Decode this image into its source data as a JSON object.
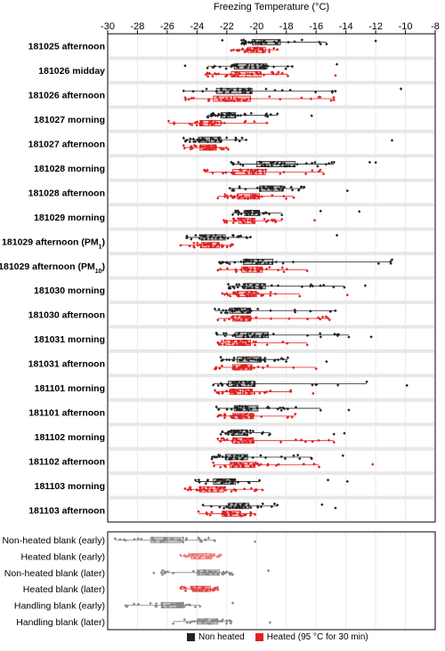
{
  "chart_data": {
    "type": "scatter",
    "subtype": "jittered dot plot with horizontal boxplots",
    "xlabel": "Freezing Temperature (°C)",
    "xlim": [
      -30,
      -8
    ],
    "xticks": [
      -30,
      -28,
      -26,
      -24,
      -22,
      -20,
      -18,
      -16,
      -14,
      -12,
      -10,
      -8
    ],
    "grid": true,
    "legend_position": "bottom",
    "series": [
      {
        "name": "Non heated",
        "color": "#222222"
      },
      {
        "name": "Heated (95 °C for 30 min)",
        "color": "#e02020"
      }
    ],
    "samples": [
      {
        "label": "181025 afternoon",
        "sub": "",
        "nh": {
          "q1": -20.3,
          "med": -19.7,
          "q3": -18.4,
          "min": -21.0,
          "max": -15.3,
          "out": [
            -22.3,
            -12.0
          ]
        },
        "h": {
          "q1": -20.6,
          "med": -20.0,
          "q3": -19.4,
          "min": -21.7,
          "max": -18.6,
          "out": []
        }
      },
      {
        "label": "181026 midday",
        "sub": "",
        "nh": {
          "q1": -21.5,
          "med": -20.4,
          "q3": -19.3,
          "min": -23.3,
          "max": -17.6,
          "out": [
            -24.8,
            -14.6
          ]
        },
        "h": {
          "q1": -21.7,
          "med": -20.7,
          "q3": -19.7,
          "min": -23.4,
          "max": -17.9,
          "out": [
            -14.7
          ]
        }
      },
      {
        "label": "181026 afternoon",
        "sub": "",
        "nh": {
          "q1": -22.7,
          "med": -21.8,
          "q3": -20.3,
          "min": -24.9,
          "max": -14.7,
          "out": [
            -10.3
          ]
        },
        "h": {
          "q1": -22.9,
          "med": -21.6,
          "q3": -20.4,
          "min": -24.8,
          "max": -14.8,
          "out": []
        }
      },
      {
        "label": "181027 morning",
        "sub": "",
        "nh": {
          "q1": -22.4,
          "med": -21.8,
          "q3": -21.4,
          "min": -23.3,
          "max": -18.6,
          "out": [
            -16.3
          ]
        },
        "h": {
          "q1": -23.8,
          "med": -23.2,
          "q3": -22.4,
          "min": -25.9,
          "max": -19.3,
          "out": []
        }
      },
      {
        "label": "181027 afternoon",
        "sub": "",
        "nh": {
          "q1": -23.9,
          "med": -23.1,
          "q3": -22.4,
          "min": -24.9,
          "max": -20.7,
          "out": [
            -10.9
          ]
        },
        "h": {
          "q1": -23.8,
          "med": -23.3,
          "q3": -22.7,
          "min": -24.9,
          "max": -21.9,
          "out": []
        }
      },
      {
        "label": "181028 morning",
        "sub": "",
        "nh": {
          "q1": -20.0,
          "med": -19.0,
          "q3": -17.4,
          "min": -21.7,
          "max": -14.8,
          "out": [
            -12.4,
            -12.0
          ]
        },
        "h": {
          "q1": -21.6,
          "med": -20.4,
          "q3": -19.4,
          "min": -23.5,
          "max": -15.5,
          "out": []
        }
      },
      {
        "label": "181028 afternoon",
        "sub": "",
        "nh": {
          "q1": -19.8,
          "med": -18.9,
          "q3": -18.2,
          "min": -21.8,
          "max": -16.8,
          "out": [
            -13.9
          ]
        },
        "h": {
          "q1": -21.3,
          "med": -20.4,
          "q3": -19.8,
          "min": -22.6,
          "max": -17.5,
          "out": []
        }
      },
      {
        "label": "181029 morning",
        "sub": "",
        "nh": {
          "q1": -20.8,
          "med": -20.4,
          "q3": -19.8,
          "min": -21.6,
          "max": -18.3,
          "out": [
            -15.7,
            -13.1
          ]
        },
        "h": {
          "q1": -21.2,
          "med": -20.7,
          "q3": -20.1,
          "min": -22.2,
          "max": -18.3,
          "out": [
            -16.1
          ]
        }
      },
      {
        "label": "181029 afternoon (PM",
        "sub": "1",
        "nh": {
          "q1": -23.6,
          "med": -23.1,
          "q3": -22.1,
          "min": -24.7,
          "max": -20.4,
          "out": [
            -14.6
          ]
        },
        "h": {
          "q1": -23.7,
          "med": -23.3,
          "q3": -22.5,
          "min": -25.1,
          "max": -21.6,
          "out": []
        }
      },
      {
        "label": "181029 afternoon (PM",
        "sub": "10",
        "nh": {
          "q1": -20.9,
          "med": -20.3,
          "q3": -18.9,
          "min": -22.5,
          "max": -10.9,
          "out": []
        },
        "h": {
          "q1": -21.0,
          "med": -20.3,
          "q3": -19.6,
          "min": -22.6,
          "max": -16.6,
          "out": []
        }
      },
      {
        "label": "181030 morning",
        "sub": "",
        "nh": {
          "q1": -20.9,
          "med": -20.2,
          "q3": -19.4,
          "min": -21.9,
          "max": -14.1,
          "out": [
            -12.7
          ]
        },
        "h": {
          "q1": -21.3,
          "med": -20.6,
          "q3": -20.0,
          "min": -22.3,
          "max": -17.1,
          "out": [
            -13.9
          ]
        }
      },
      {
        "label": "181030 afternoon",
        "sub": "",
        "nh": {
          "q1": -21.8,
          "med": -20.9,
          "q3": -20.4,
          "min": -22.8,
          "max": -14.7,
          "out": []
        },
        "h": {
          "q1": -21.6,
          "med": -20.8,
          "q3": -20.4,
          "min": -22.6,
          "max": -15.1,
          "out": []
        }
      },
      {
        "label": "181031 morning",
        "sub": "",
        "nh": {
          "q1": -21.4,
          "med": -20.1,
          "q3": -19.2,
          "min": -22.7,
          "max": -13.8,
          "out": [
            -12.3
          ]
        },
        "h": {
          "q1": -22.0,
          "med": -21.0,
          "q3": -20.4,
          "min": -22.6,
          "max": -16.6,
          "out": []
        }
      },
      {
        "label": "181031 afternoon",
        "sub": "",
        "nh": {
          "q1": -21.3,
          "med": -20.5,
          "q3": -19.7,
          "min": -22.4,
          "max": -17.9,
          "out": [
            -15.3
          ]
        },
        "h": {
          "q1": -21.6,
          "med": -20.9,
          "q3": -20.3,
          "min": -22.8,
          "max": -16.0,
          "out": []
        }
      },
      {
        "label": "181101 morning",
        "sub": "",
        "nh": {
          "q1": -21.9,
          "med": -21.1,
          "q3": -20.1,
          "min": -22.9,
          "max": -12.6,
          "out": [
            -9.9
          ]
        },
        "h": {
          "q1": -21.8,
          "med": -21.0,
          "q3": -20.3,
          "min": -22.8,
          "max": -17.7,
          "out": [
            -16.2
          ]
        }
      },
      {
        "label": "181101 afternoon",
        "sub": "",
        "nh": {
          "q1": -21.5,
          "med": -20.7,
          "q3": -19.9,
          "min": -22.7,
          "max": -15.7,
          "out": [
            -13.8
          ]
        },
        "h": {
          "q1": -21.6,
          "med": -21.0,
          "q3": -20.2,
          "min": -22.6,
          "max": -17.4,
          "out": []
        }
      },
      {
        "label": "181102 morning",
        "sub": "",
        "nh": {
          "q1": -21.7,
          "med": -21.2,
          "q3": -20.6,
          "min": -22.4,
          "max": -19.1,
          "out": [
            -14.8,
            -14.1
          ]
        },
        "h": {
          "q1": -21.6,
          "med": -20.9,
          "q3": -20.2,
          "min": -22.6,
          "max": -14.8,
          "out": []
        }
      },
      {
        "label": "181102 afternoon",
        "sub": "",
        "nh": {
          "q1": -22.1,
          "med": -21.4,
          "q3": -20.6,
          "min": -23.0,
          "max": -16.3,
          "out": [
            -14.2
          ]
        },
        "h": {
          "q1": -21.8,
          "med": -21.0,
          "q3": -20.1,
          "min": -22.9,
          "max": -15.8,
          "out": [
            -12.2
          ]
        }
      },
      {
        "label": "181103 morning",
        "sub": "",
        "nh": {
          "q1": -22.9,
          "med": -22.3,
          "q3": -21.4,
          "min": -24.1,
          "max": -19.8,
          "out": [
            -15.2,
            -13.9
          ]
        },
        "h": {
          "q1": -23.8,
          "med": -23.0,
          "q3": -22.2,
          "min": -24.8,
          "max": -19.6,
          "out": []
        }
      },
      {
        "label": "181103 afternoon",
        "sub": "",
        "nh": {
          "q1": -21.9,
          "med": -21.2,
          "q3": -20.5,
          "min": -23.6,
          "max": -18.6,
          "out": [
            -15.6,
            -14.7
          ]
        },
        "h": {
          "q1": -22.3,
          "med": -21.7,
          "q3": -21.1,
          "min": -23.9,
          "max": -20.1,
          "out": []
        }
      }
    ],
    "blanks": [
      {
        "label": "Non-heated blank (early)",
        "color": "#888888",
        "q1": -27.1,
        "med": -26.0,
        "q3": -25.1,
        "min": -29.5,
        "max": -22.8,
        "out": [
          -20.1
        ]
      },
      {
        "label": "Heated blank (early)",
        "color": "#f07a7a",
        "q1": -24.4,
        "med": -23.8,
        "q3": -23.0,
        "min": -25.1,
        "max": -22.4,
        "out": []
      },
      {
        "label": "Non-heated blank (later)",
        "color": "#888888",
        "q1": -24.0,
        "med": -23.4,
        "q3": -22.5,
        "min": -26.4,
        "max": -21.6,
        "out": [
          -26.9,
          -19.2
        ]
      },
      {
        "label": "Heated blank (later)",
        "color": "#e04848",
        "q1": -24.3,
        "med": -23.7,
        "q3": -23.1,
        "min": -25.1,
        "max": -22.6,
        "out": []
      },
      {
        "label": "Handling blank (early)",
        "color": "#888888",
        "q1": -26.4,
        "med": -25.6,
        "q3": -24.9,
        "min": -28.8,
        "max": -23.8,
        "out": [
          -21.6
        ]
      },
      {
        "label": "Handling blank (later)",
        "color": "#888888",
        "q1": -24.0,
        "med": -23.3,
        "q3": -22.6,
        "min": -25.6,
        "max": -21.7,
        "out": [
          -19.1
        ]
      }
    ]
  }
}
